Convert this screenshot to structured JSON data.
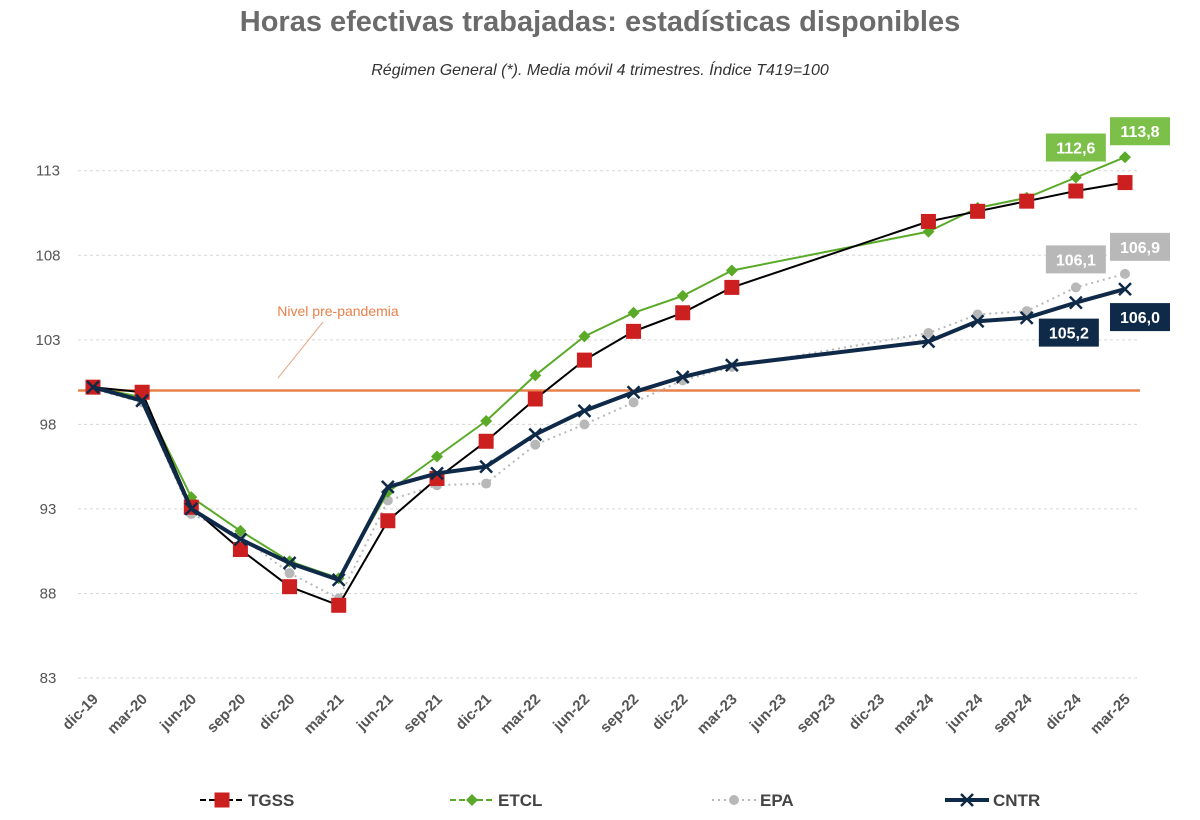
{
  "chart_data": {
    "type": "line",
    "title": "Horas efectivas trabajadas: estadísticas disponibles",
    "subtitle": "Régimen General (*). Media móvil 4 trimestres. Índice T419=100",
    "categories": [
      "dic-19",
      "mar-20",
      "jun-20",
      "sep-20",
      "dic-20",
      "mar-21",
      "jun-21",
      "sep-21",
      "dic-21",
      "mar-22",
      "jun-22",
      "sep-22",
      "dic-22",
      "mar-23",
      "jun-23",
      "sep-23",
      "dic-23",
      "mar-24",
      "jun-24",
      "sep-24",
      "dic-24",
      "mar-25"
    ],
    "yticks": [
      83,
      88,
      93,
      98,
      103,
      108,
      113
    ],
    "ylim": [
      83,
      116
    ],
    "grid": true,
    "legend_position": "bottom",
    "reference_line": {
      "label": "Nivel pre-pandemia",
      "value": 100,
      "color": "#e8804a"
    },
    "series": [
      {
        "name": "TGSS",
        "color": "#000000",
        "marker_color": "#cc1f1f",
        "marker": "square",
        "line": "solid",
        "values": [
          100.2,
          99.9,
          93.1,
          90.6,
          88.4,
          87.3,
          92.3,
          94.8,
          97.0,
          99.5,
          101.8,
          103.5,
          104.6,
          106.1,
          null,
          null,
          null,
          110.0,
          110.6,
          111.2,
          111.8,
          112.3
        ]
      },
      {
        "name": "ETCL",
        "color": "#5aaa28",
        "marker_color": "#5aaa28",
        "marker": "diamond",
        "line": "solid",
        "values": [
          100.2,
          99.6,
          93.7,
          91.7,
          89.9,
          88.9,
          94.0,
          96.1,
          98.2,
          100.9,
          103.2,
          104.6,
          105.6,
          107.1,
          null,
          null,
          null,
          109.4,
          110.8,
          111.4,
          112.6,
          113.8
        ]
      },
      {
        "name": "EPA",
        "color": "#b8b8b8",
        "marker_color": "#b8b8b8",
        "marker": "circle",
        "line": "dotted",
        "values": [
          100.1,
          99.3,
          92.7,
          91.4,
          89.2,
          87.7,
          93.5,
          94.4,
          94.5,
          96.8,
          98.0,
          99.3,
          100.6,
          101.4,
          null,
          null,
          null,
          103.4,
          104.5,
          104.7,
          106.1,
          106.9
        ]
      },
      {
        "name": "CNTR",
        "color": "#0f2a48",
        "marker_color": "#0f2a48",
        "marker": "x",
        "line": "solid",
        "values": [
          100.2,
          99.4,
          93.0,
          91.2,
          89.8,
          88.8,
          94.3,
          95.1,
          95.5,
          97.4,
          98.8,
          99.9,
          100.8,
          101.5,
          null,
          null,
          null,
          102.9,
          104.1,
          104.3,
          105.2,
          106.0
        ]
      }
    ],
    "data_labels": [
      {
        "series": "ETCL",
        "index": 20,
        "text": "112,6",
        "bg": "#7cc04a"
      },
      {
        "series": "ETCL",
        "index": 21,
        "text": "113,8",
        "bg": "#7cc04a"
      },
      {
        "series": "EPA",
        "index": 20,
        "text": "106,1",
        "bg": "#b8b8b8"
      },
      {
        "series": "EPA",
        "index": 21,
        "text": "106,9",
        "bg": "#b8b8b8"
      },
      {
        "series": "CNTR",
        "index": 20,
        "text": "105,2",
        "bg": "#0f2a48"
      },
      {
        "series": "CNTR",
        "index": 21,
        "text": "106,0",
        "bg": "#0f2a48"
      }
    ]
  }
}
